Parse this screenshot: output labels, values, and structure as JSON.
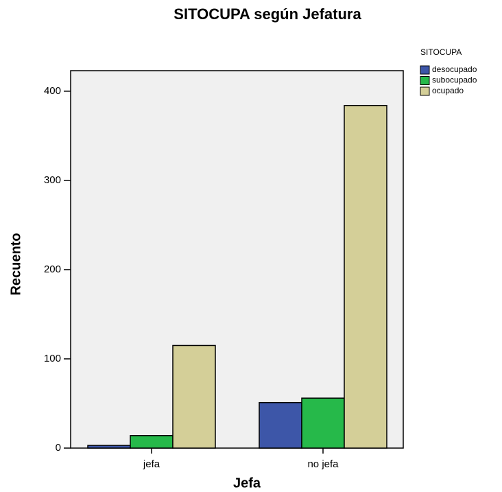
{
  "chart_data": {
    "type": "bar",
    "title": "SITOCUPA según Jefatura",
    "x_label": "Jefa",
    "y_label": "Recuento",
    "legend_title": "SITOCUPA",
    "categories": [
      "jefa",
      "no jefa"
    ],
    "series": [
      {
        "name": "desocupado",
        "color": "#3d56a8",
        "values": [
          3,
          51
        ]
      },
      {
        "name": "subocupado",
        "color": "#26b94a",
        "values": [
          14,
          56
        ]
      },
      {
        "name": "ocupado",
        "color": "#d4cf98",
        "values": [
          115,
          384
        ]
      }
    ],
    "ylim": [
      0,
      423
    ],
    "yticks": [
      0,
      100,
      200,
      300,
      400
    ],
    "legend": "right"
  }
}
